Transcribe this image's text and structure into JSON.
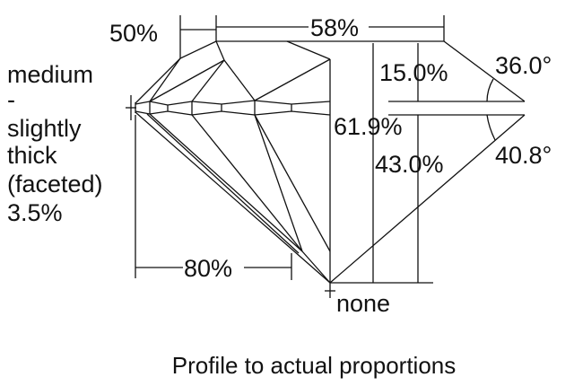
{
  "girdle": {
    "lines": [
      "medium",
      "-",
      "slightly",
      "thick",
      "(faceted)",
      "3.5%"
    ]
  },
  "measurements": {
    "star_length": "50%",
    "table": "58%",
    "total_depth": "61.9%",
    "crown_height": "15.0%",
    "pavilion_depth": "43.0%",
    "crown_angle": "36.0°",
    "pavilion_angle": "40.8°",
    "lower_half": "80%",
    "culet": "none"
  },
  "caption": "Profile to actual proportions",
  "colors": {
    "line": "#111111",
    "background": "#ffffff"
  }
}
